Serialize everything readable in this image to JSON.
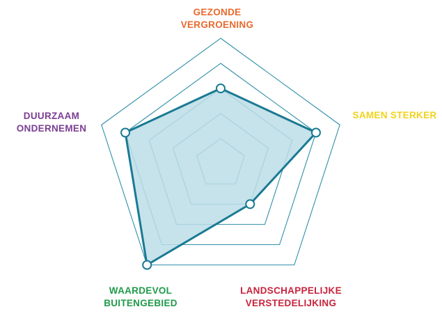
{
  "chart_data": {
    "type": "radar",
    "title": "",
    "axes": [
      {
        "label_lines": [
          "GEZONDE",
          "VERGROENING"
        ],
        "color": "#e8692d",
        "value": 3
      },
      {
        "label_lines": [
          "SAMEN STERKER"
        ],
        "color": "#f2d21b",
        "value": 4
      },
      {
        "label_lines": [
          "LANDSCHAPPELIJKE",
          "VERSTEDELIJKING"
        ],
        "color": "#c8243c",
        "value": 2
      },
      {
        "label_lines": [
          "WAARDEVOL",
          "BUITENGEBIED"
        ],
        "color": "#1f9a4a",
        "value": 5
      },
      {
        "label_lines": [
          "DUURZAAM",
          "ONDERNEMEN"
        ],
        "color": "#7a3d93",
        "value": 4
      }
    ],
    "scale": {
      "min": 0,
      "max": 5,
      "rings": 5
    },
    "grid": true,
    "series": [
      {
        "values": [
          3,
          4,
          2,
          5,
          4
        ],
        "line_color": "#1a7a93",
        "fill_color": "#bcdde8"
      }
    ],
    "grid_color": "#2e8fa8"
  }
}
